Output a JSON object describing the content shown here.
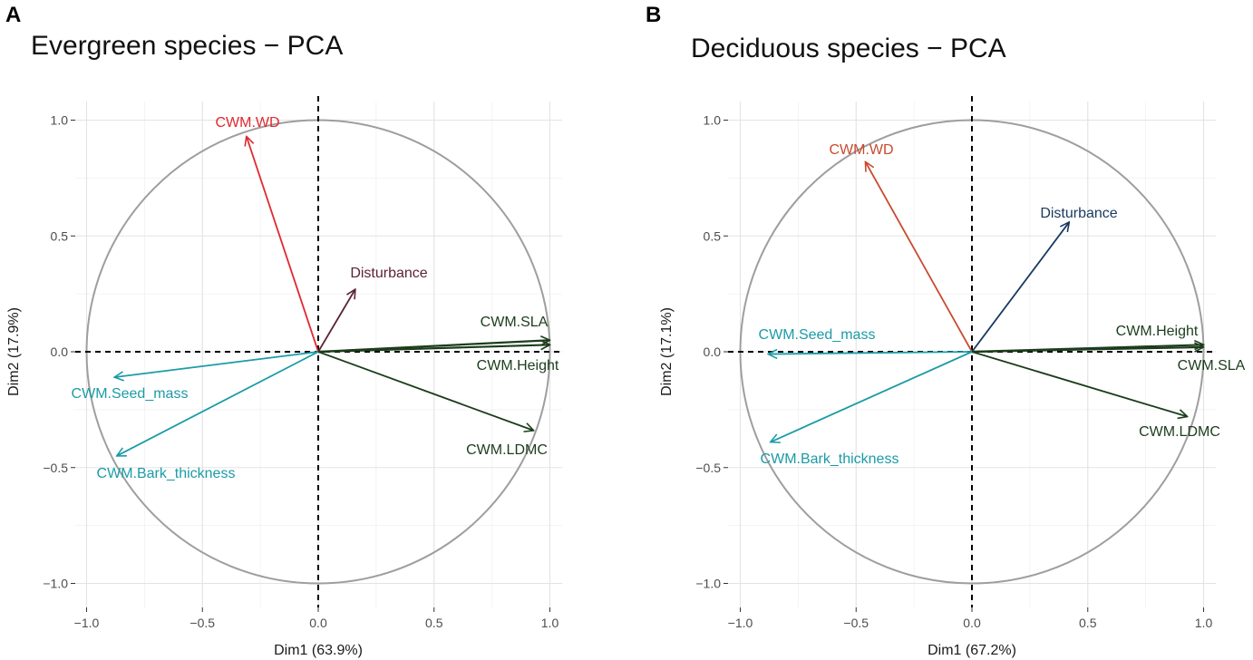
{
  "chart_data": [
    {
      "type": "pca-biplot",
      "panel_letter": "A",
      "title": "Evergreen species − PCA",
      "xlabel": "Dim1 (63.9%)",
      "ylabel": "Dim2 (17.9%)",
      "xlim": [
        -1.0,
        1.0
      ],
      "ylim": [
        -1.0,
        1.0
      ],
      "xticks": [
        -1.0,
        -0.5,
        0.0,
        0.5,
        1.0
      ],
      "yticks": [
        -1.0,
        -0.5,
        0.0,
        0.5,
        1.0
      ],
      "xtick_labels": [
        "−1.0",
        "−0.5",
        "0.0",
        "0.5",
        "1.0"
      ],
      "ytick_labels": [
        "−1.0",
        "−0.5",
        "0.0",
        "0.5",
        "1.0"
      ],
      "vectors": [
        {
          "name": "CWM.WD",
          "x": -0.31,
          "y": 0.93,
          "color": "#e0282e"
        },
        {
          "name": "Disturbance",
          "x": 0.16,
          "y": 0.27,
          "color": "#5b2333"
        },
        {
          "name": "CWM.SLA",
          "x": 1.0,
          "y": 0.05,
          "color": "#1c3d1c"
        },
        {
          "name": "CWM.Height",
          "x": 1.0,
          "y": 0.03,
          "color": "#1c3d1c"
        },
        {
          "name": "CWM.LDMC",
          "x": 0.93,
          "y": -0.34,
          "color": "#1c3d1c"
        },
        {
          "name": "CWM.Seed_mass",
          "x": -0.88,
          "y": -0.11,
          "color": "#1b9ba6"
        },
        {
          "name": "CWM.Bark_thickness",
          "x": -0.87,
          "y": -0.45,
          "color": "#1b9ba6"
        }
      ]
    },
    {
      "type": "pca-biplot",
      "panel_letter": "B",
      "title": "Deciduous species − PCA",
      "xlabel": "Dim1 (67.2%)",
      "ylabel": "Dim2 (17.1%)",
      "xlim": [
        -1.0,
        1.0
      ],
      "ylim": [
        -1.0,
        1.0
      ],
      "xticks": [
        -1.0,
        -0.5,
        0.0,
        0.5,
        1.0
      ],
      "yticks": [
        -1.0,
        -0.5,
        0.0,
        0.5,
        1.0
      ],
      "xtick_labels": [
        "−1.0",
        "−0.5",
        "0.0",
        "0.5",
        "1.0"
      ],
      "ytick_labels": [
        "−1.0",
        "−0.5",
        "0.0",
        "0.5",
        "1.0"
      ],
      "vectors": [
        {
          "name": "CWM.WD",
          "x": -0.46,
          "y": 0.82,
          "color": "#c84a2f"
        },
        {
          "name": "Disturbance",
          "x": 0.42,
          "y": 0.56,
          "color": "#173a5e"
        },
        {
          "name": "CWM.Height",
          "x": 1.0,
          "y": 0.03,
          "color": "#1c3d1c"
        },
        {
          "name": "CWM.SLA",
          "x": 1.0,
          "y": 0.02,
          "color": "#1c3d1c"
        },
        {
          "name": "CWM.LDMC",
          "x": 0.93,
          "y": -0.28,
          "color": "#1c3d1c"
        },
        {
          "name": "CWM.Seed_mass",
          "x": -0.88,
          "y": -0.01,
          "color": "#1b9ba6"
        },
        {
          "name": "CWM.Bark_thickness",
          "x": -0.87,
          "y": -0.39,
          "color": "#1b9ba6"
        }
      ]
    }
  ]
}
